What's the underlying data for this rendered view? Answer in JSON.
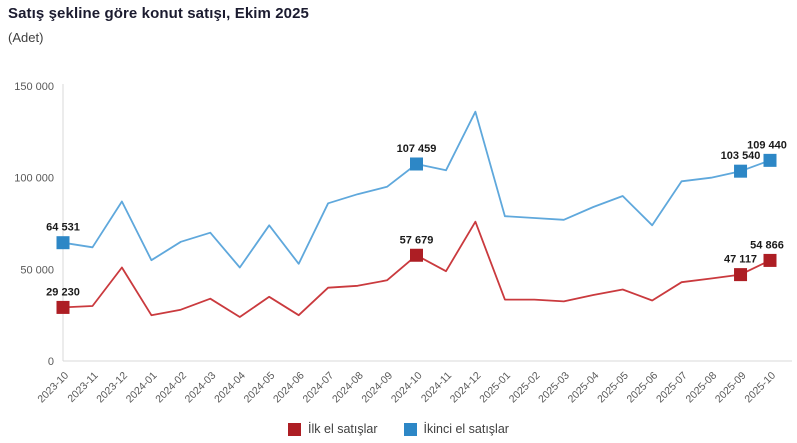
{
  "title": "Satış şekline göre konut satışı, Ekim 2025",
  "subtitle": "(Adet)",
  "chart_data": {
    "type": "line",
    "categories": [
      "2023-10",
      "2023-11",
      "2023-12",
      "2024-01",
      "2024-02",
      "2024-03",
      "2024-04",
      "2024-05",
      "2024-06",
      "2024-07",
      "2024-08",
      "2024-09",
      "2024-10",
      "2024-11",
      "2024-12",
      "2025-01",
      "2025-02",
      "2025-03",
      "2025-04",
      "2025-05",
      "2025-06",
      "2025-07",
      "2025-08",
      "2025-09",
      "2025-10"
    ],
    "series": [
      {
        "name": "İlk el satışlar",
        "line_color": "#ca3a3e",
        "marker_color": "#ad1e24",
        "values": [
          29230,
          30000,
          51000,
          25000,
          28000,
          34000,
          24000,
          35000,
          25000,
          40000,
          41000,
          44000,
          57679,
          49000,
          76000,
          33500,
          33500,
          32500,
          36000,
          39000,
          33000,
          43000,
          45000,
          47117,
          54866
        ]
      },
      {
        "name": "İkinci el satışlar",
        "line_color": "#5fa8dc",
        "marker_color": "#2d87c6",
        "values": [
          64531,
          62000,
          87000,
          55000,
          65000,
          70000,
          51000,
          74000,
          53000,
          86000,
          91000,
          95000,
          107459,
          104000,
          136000,
          79000,
          78000,
          77000,
          84000,
          90000,
          74000,
          98000,
          100000,
          103540,
          109440
        ]
      }
    ],
    "ylim": [
      0,
      150000
    ],
    "yticks": [
      {
        "value": 0,
        "label": "0"
      },
      {
        "value": 50000,
        "label": "50 000"
      },
      {
        "value": 100000,
        "label": "100 000"
      },
      {
        "value": 150000,
        "label": "150 000"
      }
    ],
    "grid": false,
    "legend_position": "bottom-center",
    "point_labels": [
      {
        "series": 0,
        "index": 0,
        "text": "29 230"
      },
      {
        "series": 0,
        "index": 12,
        "text": "57 679"
      },
      {
        "series": 0,
        "index": 23,
        "text": "47 117"
      },
      {
        "series": 0,
        "index": 24,
        "text": "54 866"
      },
      {
        "series": 1,
        "index": 0,
        "text": "64 531"
      },
      {
        "series": 1,
        "index": 12,
        "text": "107 459"
      },
      {
        "series": 1,
        "index": 23,
        "text": "103 540"
      },
      {
        "series": 1,
        "index": 24,
        "text": "109 440"
      }
    ],
    "axis_color": "#d9d9d9",
    "tick_label_color": "#595959",
    "data_label_color": "#1a1a1a"
  }
}
